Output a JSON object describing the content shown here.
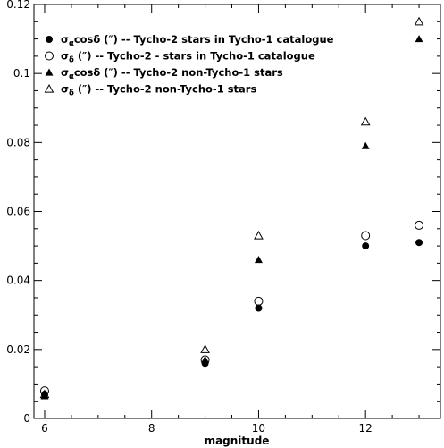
{
  "chart_data": {
    "type": "scatter",
    "title": "",
    "xlabel": "magnitude",
    "ylabel": "",
    "xlim": [
      5.8,
      13.4
    ],
    "ylim": [
      0,
      0.12
    ],
    "xticks": [
      6,
      8,
      10,
      12
    ],
    "yticks": [
      0,
      0.02,
      0.04,
      0.06,
      0.08,
      0.1,
      0.12
    ],
    "xtick_labels": [
      "6",
      "8",
      "10",
      "12"
    ],
    "ytick_labels": [
      "0",
      "0.02",
      "0.04",
      "0.06",
      "0.08",
      "0.1",
      "0.12"
    ],
    "grid": false,
    "legend_position": "top-left",
    "series": [
      {
        "name": "σαcosδ (″) -- Tycho-2 stars in Tycho-1 catalogue",
        "marker": "filled-circle",
        "x": [
          6,
          9,
          10,
          12,
          13
        ],
        "y": [
          0.007,
          0.016,
          0.032,
          0.05,
          0.051
        ]
      },
      {
        "name": "σδ (″) -- Tycho-2 - stars in Tycho-1 catalogue",
        "marker": "open-circle",
        "x": [
          6,
          9,
          10,
          12,
          13
        ],
        "y": [
          0.008,
          0.017,
          0.034,
          0.053,
          0.056
        ]
      },
      {
        "name": "σαcosδ (″) -- Tycho-2 non-Tycho-1 stars",
        "marker": "filled-triangle",
        "x": [
          6,
          9,
          10,
          12,
          13
        ],
        "y": [
          0.0065,
          0.017,
          0.046,
          0.079,
          0.11
        ]
      },
      {
        "name": "σδ (″) -- Tycho-2 non-Tycho-1 stars",
        "marker": "open-triangle",
        "x": [
          6,
          9,
          10,
          12,
          13
        ],
        "y": [
          0.007,
          0.02,
          0.053,
          0.086,
          0.115
        ]
      }
    ],
    "legend": [
      {
        "prefix": "σ",
        "sub": "α",
        "suffix": "cosδ (″) -- Tycho-2 stars in Tycho-1 catalogue"
      },
      {
        "prefix": "σ",
        "sub": "δ",
        "suffix": " (″) -- Tycho-2 - stars in Tycho-1 catalogue"
      },
      {
        "prefix": "σ",
        "sub": "α",
        "suffix": "cosδ (″) -- Tycho-2 non-Tycho-1 stars"
      },
      {
        "prefix": "σ",
        "sub": "δ",
        "suffix": " (″) -- Tycho-2 non-Tycho-1 stars"
      }
    ]
  }
}
